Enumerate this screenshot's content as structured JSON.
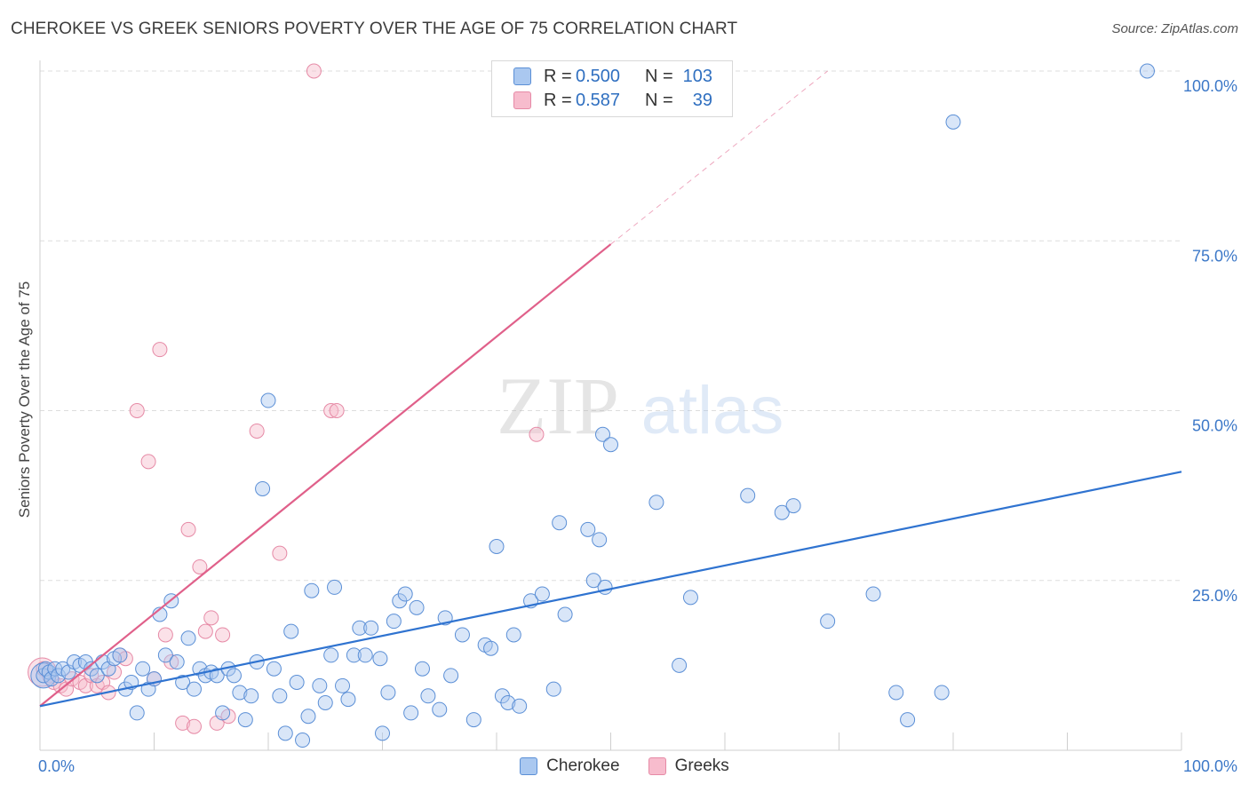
{
  "header": {
    "title": "CHEROKEE VS GREEK SENIORS POVERTY OVER THE AGE OF 75 CORRELATION CHART",
    "source": "Source: ZipAtlas.com"
  },
  "watermark": {
    "zip": "ZIP",
    "atlas": "atlas"
  },
  "legend": {
    "rows": [
      {
        "r_label": "R =",
        "r_value": "0.500",
        "n_label": "N =",
        "n_value": "103"
      },
      {
        "r_label": "R =",
        "r_value": "0.587",
        "n_label": "N =",
        "n_value": "39"
      }
    ]
  },
  "bottom_legend": {
    "cherokee": "Cherokee",
    "greeks": "Greeks"
  },
  "colors": {
    "cherokee_fill": "#aac8f0",
    "cherokee_stroke": "#5b8fd6",
    "cherokee_line": "#2f73d0",
    "greeks_fill": "#f7bccd",
    "greeks_stroke": "#e68aa6",
    "greeks_line": "#e0608a",
    "grid": "#dddddd",
    "tick_label": "#3c78c8"
  },
  "chart_data": {
    "type": "scatter",
    "ylabel": "Seniors Poverty Over the Age of 75",
    "xlim": [
      0,
      100
    ],
    "ylim": [
      0,
      100
    ],
    "x_tick_labels": [
      "0.0%",
      "100.0%"
    ],
    "y_ticks": [
      {
        "value": 25,
        "label": "25.0%"
      },
      {
        "value": 50,
        "label": "50.0%"
      },
      {
        "value": 75,
        "label": "75.0%"
      },
      {
        "value": 100,
        "label": "100.0%"
      }
    ],
    "grid": true,
    "series": [
      {
        "name": "Cherokee",
        "trend": {
          "x0": 0,
          "y0": 6.5,
          "x1": 100,
          "y1": 41
        },
        "points": [
          [
            0.3,
            11
          ],
          [
            0.5,
            12
          ],
          [
            0.8,
            11.5
          ],
          [
            1,
            10.5
          ],
          [
            1.3,
            12
          ],
          [
            1.6,
            11
          ],
          [
            2,
            12
          ],
          [
            2.5,
            11.5
          ],
          [
            3,
            13
          ],
          [
            3.5,
            12.5
          ],
          [
            4,
            13
          ],
          [
            4.5,
            12
          ],
          [
            5,
            11
          ],
          [
            5.5,
            13
          ],
          [
            6,
            12
          ],
          [
            6.5,
            13.5
          ],
          [
            7,
            14
          ],
          [
            7.5,
            9
          ],
          [
            8,
            10
          ],
          [
            8.5,
            5.5
          ],
          [
            9,
            12
          ],
          [
            9.5,
            9
          ],
          [
            10,
            10.5
          ],
          [
            10.5,
            20
          ],
          [
            11,
            14
          ],
          [
            11.5,
            22
          ],
          [
            12,
            13
          ],
          [
            12.5,
            10
          ],
          [
            13,
            16.5
          ],
          [
            13.5,
            9
          ],
          [
            14,
            12
          ],
          [
            14.5,
            11
          ],
          [
            15,
            11.5
          ],
          [
            15.5,
            11
          ],
          [
            16,
            5.5
          ],
          [
            16.5,
            12
          ],
          [
            17,
            11
          ],
          [
            17.5,
            8.5
          ],
          [
            18,
            4.5
          ],
          [
            18.5,
            8
          ],
          [
            19,
            13
          ],
          [
            19.5,
            38.5
          ],
          [
            20,
            51.5
          ],
          [
            20.5,
            12
          ],
          [
            21,
            8
          ],
          [
            21.5,
            2.5
          ],
          [
            22,
            17.5
          ],
          [
            22.5,
            10
          ],
          [
            23,
            1.5
          ],
          [
            23.5,
            5
          ],
          [
            23.8,
            23.5
          ],
          [
            24.5,
            9.5
          ],
          [
            25,
            7
          ],
          [
            25.5,
            14
          ],
          [
            25.8,
            24
          ],
          [
            26.5,
            9.5
          ],
          [
            27,
            7.5
          ],
          [
            27.5,
            14
          ],
          [
            28,
            18
          ],
          [
            28.5,
            14
          ],
          [
            29,
            18
          ],
          [
            29.8,
            13.5
          ],
          [
            30,
            2.5
          ],
          [
            30.5,
            8.5
          ],
          [
            31,
            19
          ],
          [
            31.5,
            22
          ],
          [
            32,
            23
          ],
          [
            32.5,
            5.5
          ],
          [
            33,
            21
          ],
          [
            33.5,
            12
          ],
          [
            34,
            8
          ],
          [
            35,
            6
          ],
          [
            35.5,
            19.5
          ],
          [
            36,
            11
          ],
          [
            37,
            17
          ],
          [
            38,
            4.5
          ],
          [
            39,
            15.5
          ],
          [
            39.5,
            15
          ],
          [
            40,
            30
          ],
          [
            40.5,
            8
          ],
          [
            41,
            7
          ],
          [
            41.5,
            17
          ],
          [
            42,
            6.5
          ],
          [
            43,
            22
          ],
          [
            44,
            23
          ],
          [
            45,
            9
          ],
          [
            45.5,
            33.5
          ],
          [
            46,
            20
          ],
          [
            48,
            32.5
          ],
          [
            48.5,
            25
          ],
          [
            49,
            31
          ],
          [
            49.5,
            24
          ],
          [
            49.3,
            46.5
          ],
          [
            50,
            45
          ],
          [
            54,
            36.5
          ],
          [
            56,
            12.5
          ],
          [
            57,
            22.5
          ],
          [
            62,
            37.5
          ],
          [
            65,
            35
          ],
          [
            66,
            36
          ],
          [
            69,
            19
          ],
          [
            73,
            23
          ],
          [
            75,
            8.5
          ],
          [
            76,
            4.5
          ],
          [
            79,
            8.5
          ],
          [
            80,
            92.5
          ],
          [
            97,
            100
          ]
        ]
      },
      {
        "name": "Greeks",
        "trend": {
          "x0": 0,
          "y0": 6.5,
          "x1": 50,
          "y1": 74.5,
          "dash_x1": 69,
          "dash_y1": 100
        },
        "points": [
          [
            0.3,
            12
          ],
          [
            0.8,
            11
          ],
          [
            1.2,
            10
          ],
          [
            1.8,
            9.5
          ],
          [
            2.3,
            9
          ],
          [
            2.8,
            10.5
          ],
          [
            3.5,
            10
          ],
          [
            4,
            9.5
          ],
          [
            4.5,
            11
          ],
          [
            5,
            9.5
          ],
          [
            5.5,
            10
          ],
          [
            6,
            8.5
          ],
          [
            6.5,
            11.5
          ],
          [
            7,
            14
          ],
          [
            7.5,
            13.5
          ],
          [
            8.5,
            50
          ],
          [
            9.5,
            42.5
          ],
          [
            10,
            10.5
          ],
          [
            10.5,
            59
          ],
          [
            11,
            17
          ],
          [
            11.5,
            13
          ],
          [
            12.5,
            4
          ],
          [
            13,
            32.5
          ],
          [
            13.5,
            3.5
          ],
          [
            14,
            27
          ],
          [
            14.5,
            17.5
          ],
          [
            15,
            19.5
          ],
          [
            15.5,
            4
          ],
          [
            16,
            17
          ],
          [
            16.5,
            5
          ],
          [
            19,
            47
          ],
          [
            21,
            29
          ],
          [
            24,
            100
          ],
          [
            25.5,
            50
          ],
          [
            26,
            50
          ],
          [
            43.5,
            46.5
          ]
        ]
      }
    ]
  }
}
